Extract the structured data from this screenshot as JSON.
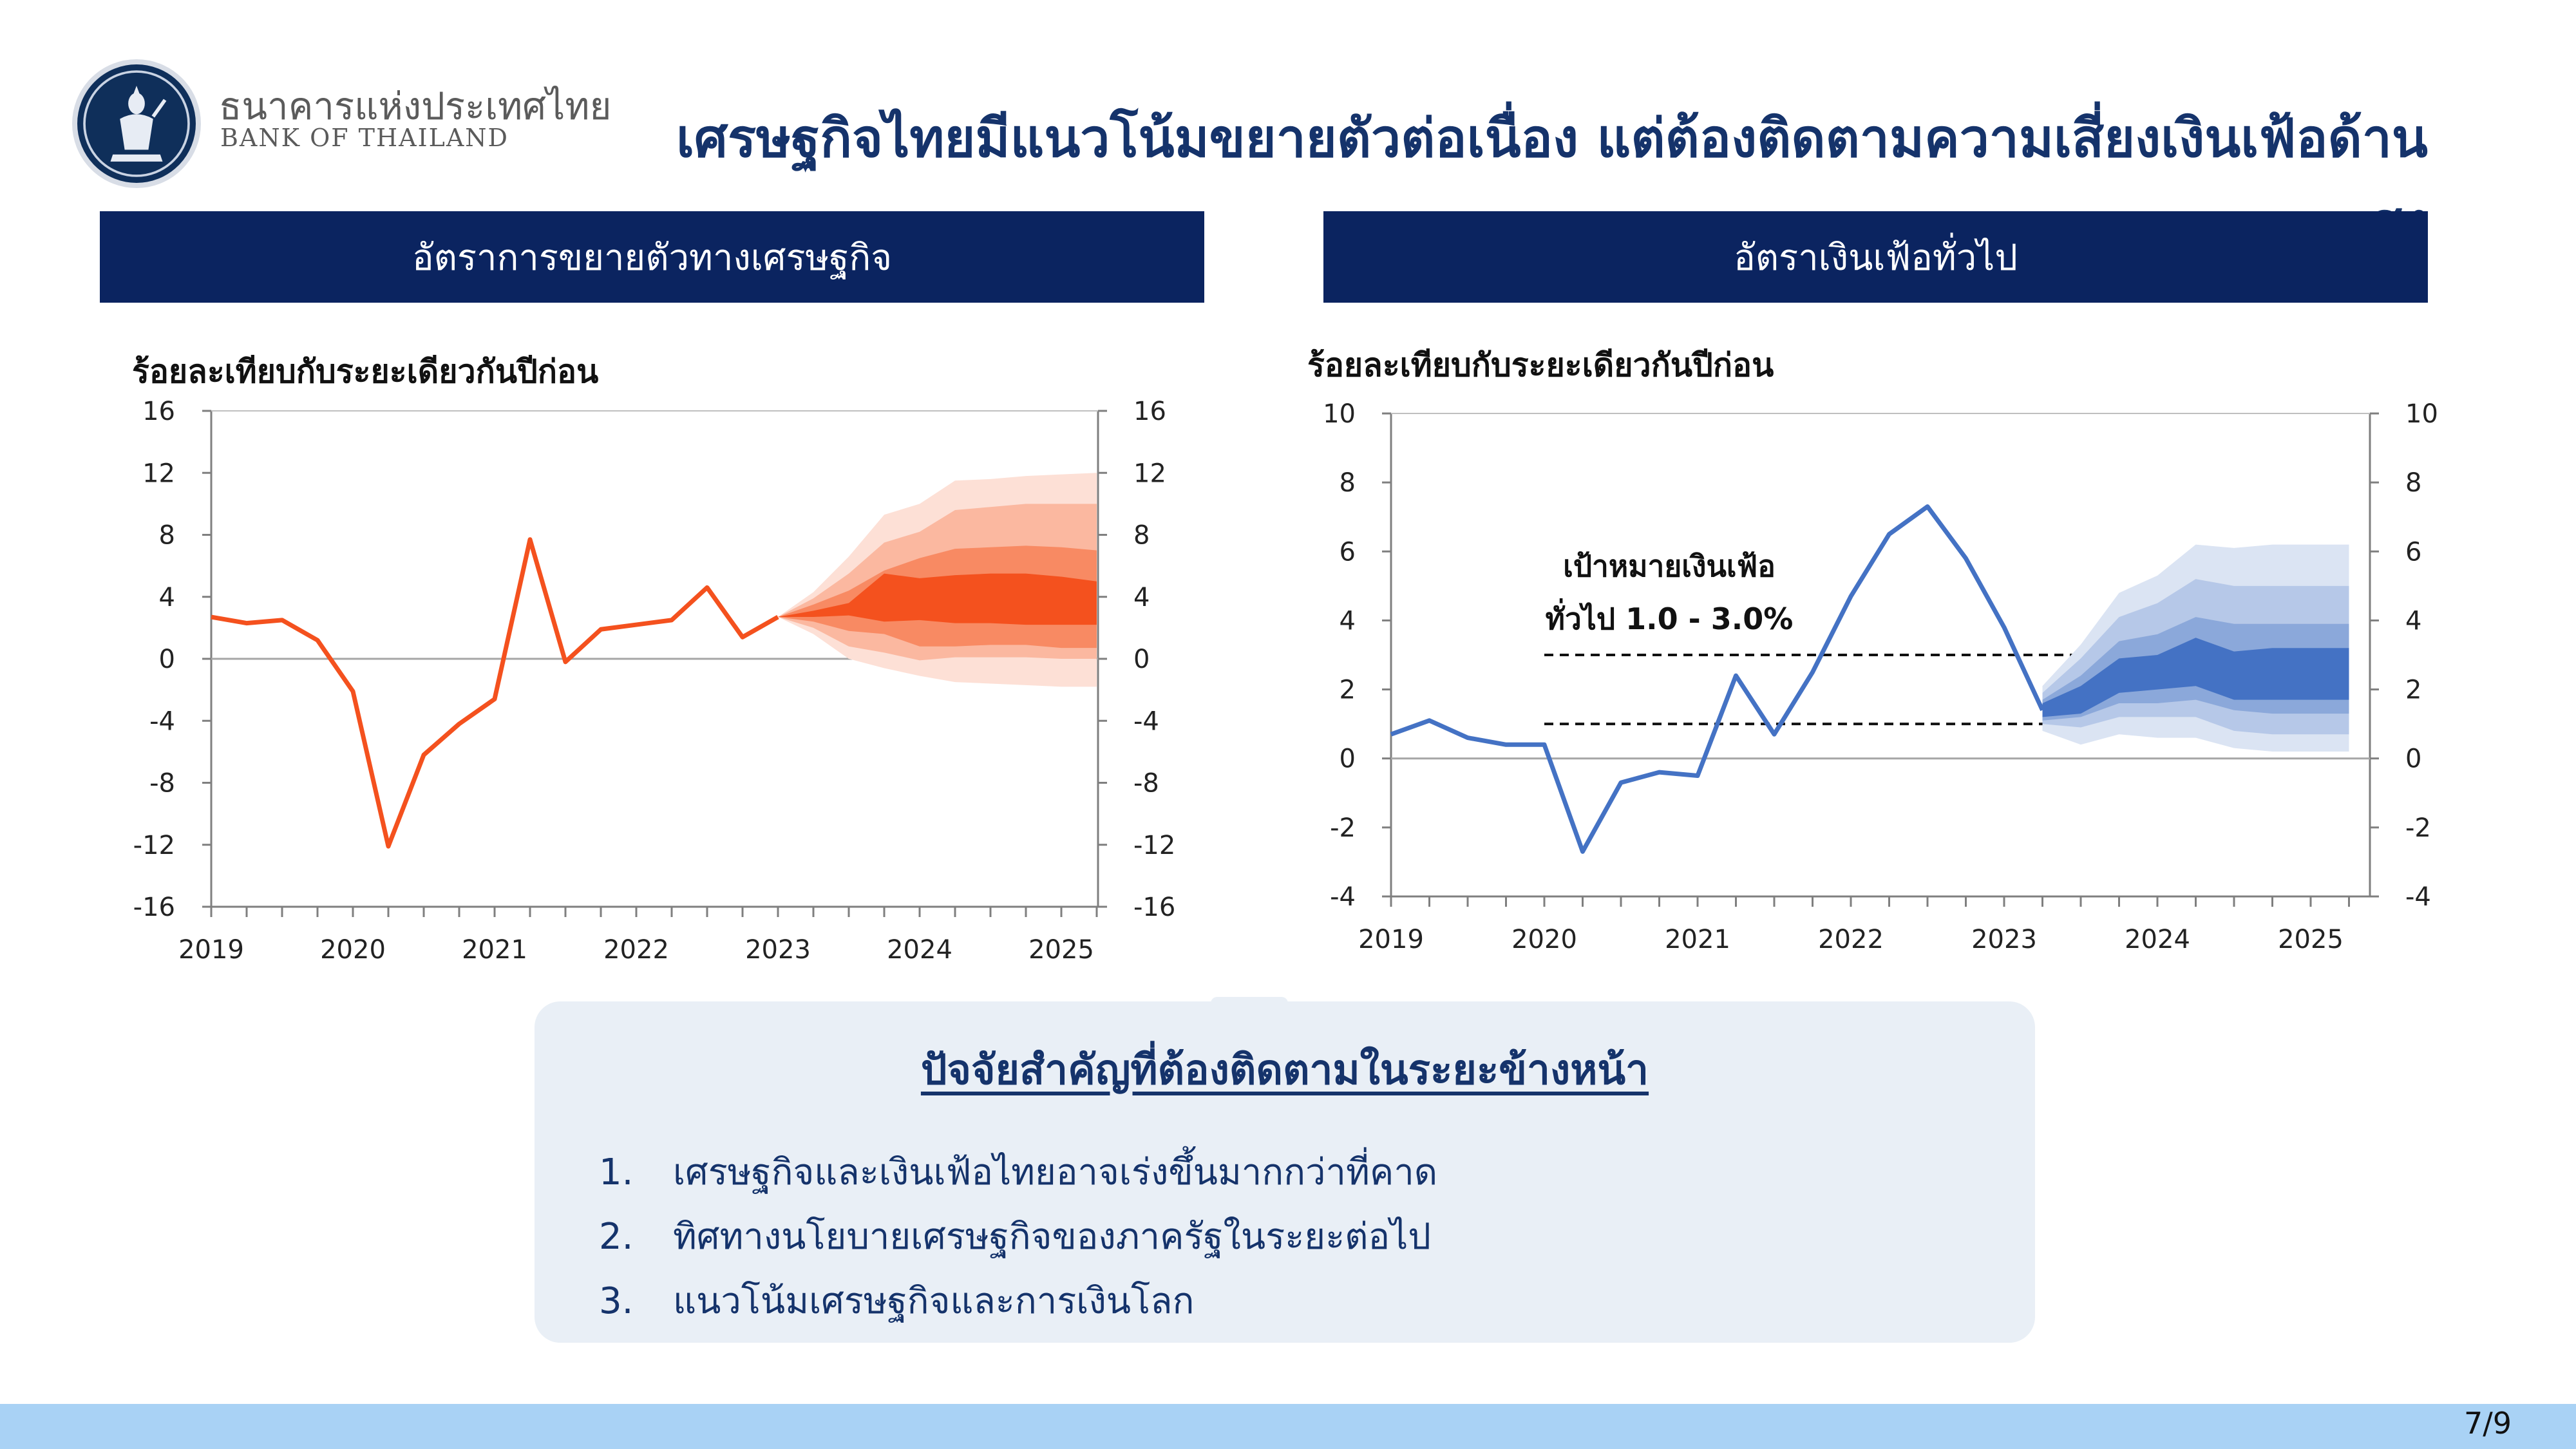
{
  "brand": {
    "thai_name": "ธนาคารแห่งประเทศไทย",
    "english_name": "BANK OF THAILAND"
  },
  "title": "เศรษฐกิจไทยมีแนวโน้มขยายตัวต่อเนื่อง แต่ต้องติดตามความเสี่ยงเงินเฟ้อด้านสูง",
  "left_panel": {
    "heading": "อัตราการขยายตัวทางเศรษฐกิจ",
    "unit": "ร้อยละเทียบกับระยะเดียวกันปีก่อน"
  },
  "right_panel": {
    "heading": "อัตราเงินเฟ้อทั่วไป",
    "unit": "ร้อยละเทียบกับระยะเดียวกันปีก่อน"
  },
  "chart_data": [
    {
      "type": "line",
      "title": "อัตราการขยายตัวทางเศรษฐกิจ",
      "ylabel": "ร้อยละเทียบกับระยะเดียวกันปีก่อน",
      "xlabel": "",
      "ylim": [
        -16,
        16
      ],
      "yticks": [
        -16,
        -12,
        -8,
        -4,
        0,
        4,
        8,
        12,
        16
      ],
      "xlim": [
        2019,
        2025.25
      ],
      "xticks": [
        "2019",
        "2020",
        "2021",
        "2022",
        "2023",
        "2024",
        "2025"
      ],
      "grid": false,
      "line_color": "#f4511e",
      "series": [
        {
          "values": [
            [
              2019.0,
              2.7
            ],
            [
              2019.25,
              2.3
            ],
            [
              2019.5,
              2.5
            ],
            [
              2019.75,
              1.2
            ],
            [
              2020.0,
              -2.1
            ],
            [
              2020.25,
              -12.1
            ],
            [
              2020.5,
              -6.2
            ],
            [
              2020.75,
              -4.2
            ],
            [
              2021.0,
              -2.6
            ],
            [
              2021.25,
              7.7
            ],
            [
              2021.5,
              -0.2
            ],
            [
              2021.75,
              1.9
            ],
            [
              2022.0,
              2.2
            ],
            [
              2022.25,
              2.5
            ],
            [
              2022.5,
              4.6
            ],
            [
              2022.75,
              1.4
            ],
            [
              2023.0,
              2.7
            ]
          ]
        }
      ],
      "fan": {
        "x": [
          2023.0,
          2023.25,
          2023.5,
          2023.75,
          2024.0,
          2024.25,
          2024.5,
          2024.75,
          2025.0,
          2025.25
        ],
        "median": [
          2.7,
          2.9,
          3.0,
          3.8,
          3.4,
          3.6,
          3.6,
          3.6,
          3.5,
          3.4
        ],
        "colors": [
          "#fde0d6",
          "#fbb8a0",
          "#f88a63",
          "#f4511e"
        ],
        "bands": [
          {
            "upper": [
              2.7,
              4.3,
              6.6,
              9.3,
              10.0,
              11.5,
              11.6,
              11.8,
              11.9,
              12.0
            ],
            "lower": [
              2.7,
              1.6,
              0.0,
              -0.6,
              -1.1,
              -1.5,
              -1.6,
              -1.7,
              -1.8,
              -1.8
            ]
          },
          {
            "upper": [
              2.7,
              3.9,
              5.5,
              7.5,
              8.2,
              9.6,
              9.8,
              10.0,
              10.0,
              10.0
            ],
            "lower": [
              2.7,
              2.0,
              0.8,
              0.4,
              -0.1,
              0.1,
              0.1,
              0.1,
              0.0,
              0.0
            ]
          },
          {
            "upper": [
              2.7,
              3.5,
              4.4,
              5.7,
              6.5,
              7.1,
              7.2,
              7.3,
              7.2,
              7.0
            ],
            "lower": [
              2.7,
              2.4,
              1.8,
              1.6,
              0.8,
              0.8,
              0.9,
              0.9,
              0.7,
              0.7
            ]
          },
          {
            "upper": [
              2.7,
              3.1,
              3.6,
              5.5,
              5.2,
              5.4,
              5.5,
              5.5,
              5.3,
              5.0
            ],
            "lower": [
              2.7,
              2.7,
              2.8,
              2.4,
              2.5,
              2.3,
              2.3,
              2.2,
              2.2,
              2.2
            ]
          }
        ]
      }
    },
    {
      "type": "line",
      "title": "อัตราเงินเฟ้อทั่วไป",
      "ylabel": "ร้อยละเทียบกับระยะเดียวกันปีก่อน",
      "xlabel": "",
      "ylim": [
        -4,
        10
      ],
      "yticks": [
        -4,
        -2,
        0,
        2,
        4,
        6,
        8,
        10
      ],
      "xlim": [
        2019,
        2025.5
      ],
      "xticks": [
        "2019",
        "2020",
        "2021",
        "2022",
        "2023",
        "2024",
        "2025"
      ],
      "grid": false,
      "line_color": "#4472c4",
      "series": [
        {
          "values": [
            [
              2019.0,
              0.7
            ],
            [
              2019.25,
              1.1
            ],
            [
              2019.5,
              0.6
            ],
            [
              2019.75,
              0.4
            ],
            [
              2020.0,
              0.4
            ],
            [
              2020.25,
              -2.7
            ],
            [
              2020.5,
              -0.7
            ],
            [
              2020.75,
              -0.4
            ],
            [
              2021.0,
              -0.5
            ],
            [
              2021.25,
              2.4
            ],
            [
              2021.5,
              0.7
            ],
            [
              2021.75,
              2.5
            ],
            [
              2022.0,
              4.7
            ],
            [
              2022.25,
              6.5
            ],
            [
              2022.5,
              7.3
            ],
            [
              2022.75,
              5.8
            ],
            [
              2023.0,
              3.8
            ],
            [
              2023.25,
              1.4
            ]
          ]
        }
      ],
      "target_band": {
        "label": "เป้าหมายเงินเฟ้อ\nทั่วไป 1.0 - 3.0%",
        "lower": 1.0,
        "upper": 3.0,
        "x_start": 2020.0
      },
      "fan": {
        "x": [
          2023.25,
          2023.5,
          2023.75,
          2024.0,
          2024.25,
          2024.5,
          2024.75,
          2025.0,
          2025.25
        ],
        "median": [
          1.4,
          1.6,
          2.2,
          2.3,
          2.5,
          2.1,
          2.0,
          2.0,
          2.0
        ],
        "colors": [
          "#dbe4f3",
          "#b6c8e8",
          "#8ba8da",
          "#4472c4"
        ],
        "bands": [
          {
            "upper": [
              2.1,
              3.3,
              4.8,
              5.3,
              6.2,
              6.1,
              6.2,
              6.2,
              6.2
            ],
            "lower": [
              0.8,
              0.4,
              0.7,
              0.6,
              0.6,
              0.3,
              0.2,
              0.2,
              0.2
            ]
          },
          {
            "upper": [
              1.9,
              2.9,
              4.1,
              4.5,
              5.2,
              5.0,
              5.0,
              5.0,
              5.0
            ],
            "lower": [
              1.0,
              0.9,
              1.2,
              1.2,
              1.2,
              0.8,
              0.7,
              0.7,
              0.7
            ]
          },
          {
            "upper": [
              1.7,
              2.4,
              3.4,
              3.6,
              4.1,
              3.9,
              3.9,
              3.9,
              3.9
            ],
            "lower": [
              1.1,
              1.2,
              1.6,
              1.6,
              1.7,
              1.4,
              1.3,
              1.3,
              1.3
            ]
          },
          {
            "upper": [
              1.6,
              2.1,
              2.9,
              3.0,
              3.5,
              3.1,
              3.2,
              3.2,
              3.2
            ],
            "lower": [
              1.2,
              1.3,
              1.9,
              2.0,
              2.1,
              1.7,
              1.7,
              1.7,
              1.7
            ]
          }
        ]
      }
    }
  ],
  "factors": {
    "title": "ปัจจัยสำคัญที่ต้องติดตามในระยะข้างหน้า",
    "items": [
      {
        "num": "1.",
        "text": "เศรษฐกิจและเงินเฟ้อไทยอาจเร่งขึ้นมากกว่าที่คาด"
      },
      {
        "num": "2.",
        "text": "ทิศทางนโยบายเศรษฐกิจของภาครัฐในระยะต่อไป"
      },
      {
        "num": "3.",
        "text": "แนวโน้มเศรษฐกิจและการเงินโลก"
      }
    ]
  },
  "page_number": "7/9"
}
